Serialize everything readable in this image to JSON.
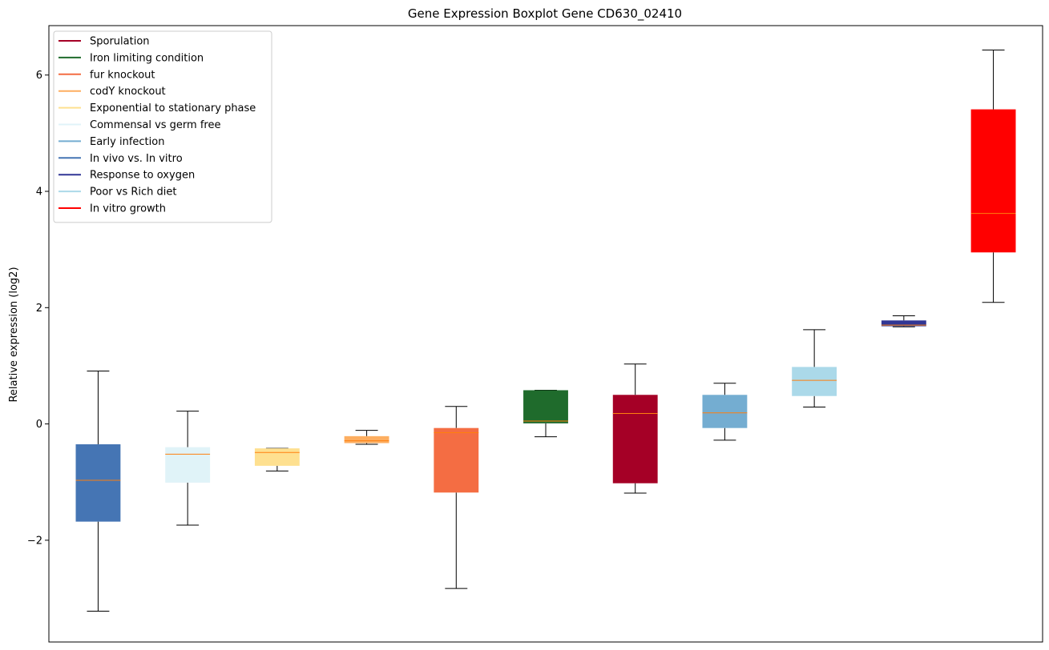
{
  "chart_data": {
    "type": "boxplot",
    "title": "Gene Expression Boxplot Gene CD630_02410",
    "xlabel": "",
    "ylabel": "Relative expression (log2)",
    "ylim": [
      -3.75,
      6.85
    ],
    "yticks": [
      {
        "value": -2,
        "label": "−2"
      },
      {
        "value": 0,
        "label": "0"
      },
      {
        "value": 2,
        "label": "2"
      },
      {
        "value": 4,
        "label": "4"
      },
      {
        "value": 6,
        "label": "6"
      }
    ],
    "legend_position": "top-left",
    "median_color": "#ff7f0e",
    "whisker_color": "#000000",
    "legend": [
      {
        "label": "Sporulation",
        "color": "#a50026"
      },
      {
        "label": "Iron limiting condition",
        "color": "#1f6b2c"
      },
      {
        "label": "fur knockout",
        "color": "#f46d43"
      },
      {
        "label": "codY knockout",
        "color": "#fdae61"
      },
      {
        "label": "Exponential to stationary phase",
        "color": "#fee090"
      },
      {
        "label": "Commensal vs germ free",
        "color": "#e0f3f8"
      },
      {
        "label": "Early infection",
        "color": "#74add1"
      },
      {
        "label": "In vivo vs. In vitro",
        "color": "#4575b4"
      },
      {
        "label": "Response to oxygen",
        "color": "#313695"
      },
      {
        "label": "Poor vs Rich diet",
        "color": "#abd9e9"
      },
      {
        "label": "In vitro growth",
        "color": "#ff0000"
      }
    ],
    "boxes": [
      {
        "group": "In vivo vs. In vitro",
        "color": "#4575b4",
        "whislo": -3.22,
        "q1": -1.68,
        "median": -0.97,
        "q3": -0.35,
        "whishi": 0.91
      },
      {
        "group": "Commensal vs germ free",
        "color": "#e0f3f8",
        "whislo": -1.74,
        "q1": -1.01,
        "median": -0.52,
        "q3": -0.4,
        "whishi": 0.22
      },
      {
        "group": "Exponential to stationary phase",
        "color": "#fee090",
        "whislo": -0.81,
        "q1": -0.72,
        "median": -0.49,
        "q3": -0.42,
        "whishi": -0.42
      },
      {
        "group": "codY knockout",
        "color": "#fdae61",
        "whislo": -0.35,
        "q1": -0.33,
        "median": -0.29,
        "q3": -0.21,
        "whishi": -0.11
      },
      {
        "group": "fur knockout",
        "color": "#f46d43",
        "whislo": -2.83,
        "q1": -1.18,
        "median": -0.15,
        "q3": -0.07,
        "whishi": 0.3
      },
      {
        "group": "Iron limiting condition",
        "color": "#1f6b2c",
        "whislo": -0.22,
        "q1": 0.01,
        "median": 0.05,
        "q3": 0.58,
        "whishi": 0.58
      },
      {
        "group": "Sporulation",
        "color": "#a50026",
        "whislo": -1.19,
        "q1": -1.02,
        "median": 0.18,
        "q3": 0.5,
        "whishi": 1.03
      },
      {
        "group": "Early infection",
        "color": "#74add1",
        "whislo": -0.28,
        "q1": -0.07,
        "median": 0.19,
        "q3": 0.5,
        "whishi": 0.7
      },
      {
        "group": "Poor vs Rich diet",
        "color": "#abd9e9",
        "whislo": 0.29,
        "q1": 0.48,
        "median": 0.75,
        "q3": 0.98,
        "whishi": 1.62
      },
      {
        "group": "Response to oxygen",
        "color": "#313695",
        "whislo": 1.67,
        "q1": 1.68,
        "median": 1.7,
        "q3": 1.78,
        "whishi": 1.86
      },
      {
        "group": "In vitro growth",
        "color": "#ff0000",
        "whislo": 2.09,
        "q1": 2.95,
        "median": 3.62,
        "q3": 5.41,
        "whishi": 6.43
      }
    ]
  }
}
